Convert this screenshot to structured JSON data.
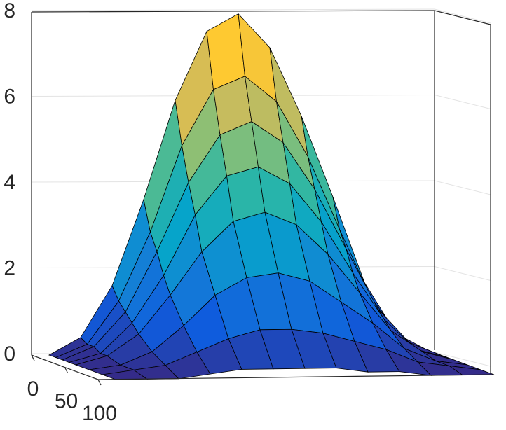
{
  "chart_data": {
    "type": "surface",
    "zlim": [
      0,
      8
    ],
    "zticks": [
      0,
      2,
      4,
      6,
      8
    ],
    "ylim": [
      0,
      100
    ],
    "yticks": [
      0,
      50,
      100
    ],
    "grid": true,
    "y": [
      0,
      10,
      20,
      30,
      40,
      60,
      80,
      100
    ],
    "z": [
      [
        0,
        0.4,
        1.6,
        3.6,
        5.9,
        7.5,
        7.9,
        7.1,
        5.5,
        3.6,
        1.6,
        0.4,
        0
      ],
      [
        0,
        0.3,
        1.3,
        2.9,
        4.9,
        6.2,
        6.5,
        5.9,
        4.6,
        2.9,
        1.3,
        0.3,
        0
      ],
      [
        0,
        0.3,
        1.1,
        2.5,
        4.1,
        5.2,
        5.5,
        5,
        3.9,
        2.5,
        1.1,
        0.3,
        0
      ],
      [
        0,
        0.2,
        0.9,
        2,
        3.4,
        4.3,
        4.5,
        4.1,
        3.2,
        2,
        0.9,
        0.2,
        0
      ],
      [
        0,
        0.2,
        0.7,
        1.6,
        2.6,
        3.3,
        3.5,
        3.2,
        2.5,
        1.6,
        0.7,
        0.2,
        0
      ],
      [
        0,
        0.1,
        0.4,
        1,
        1.7,
        2.1,
        2.2,
        2,
        1.5,
        1,
        0.4,
        0.1,
        0
      ],
      [
        0,
        0.1,
        0.2,
        0.5,
        0.8,
        1,
        1,
        0.9,
        0.7,
        0.5,
        0.2,
        0.1,
        0
      ],
      [
        0,
        0,
        0,
        0.1,
        0.2,
        0.2,
        0.2,
        0.2,
        0.1,
        0.1,
        0,
        0,
        0
      ]
    ]
  }
}
